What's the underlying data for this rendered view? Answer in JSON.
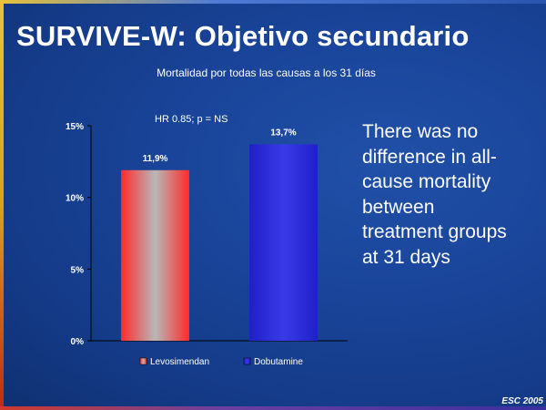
{
  "slide": {
    "title": "SURVIVE-W: Objetivo secundario",
    "side_text": "There was no difference in all-cause mortality between treatment groups at 31 days",
    "footer": "ESC 2005"
  },
  "chart_data": {
    "type": "bar",
    "title": "Mortalidad por todas las causas a los 31 días",
    "annotation": "HR 0.85; p = NS",
    "categories": [
      "Levosimendan",
      "Dobutamine"
    ],
    "values": [
      11.9,
      13.7
    ],
    "value_labels": [
      "11,9%",
      "13,7%"
    ],
    "ylim": [
      0,
      15
    ],
    "yticks": [
      0,
      5,
      10,
      15
    ],
    "ytick_labels": [
      "0%",
      "5%",
      "10%",
      "15%"
    ],
    "grid": false,
    "legend": "bottom",
    "series_colors": [
      "#e8323a",
      "#2a2ad0"
    ]
  }
}
